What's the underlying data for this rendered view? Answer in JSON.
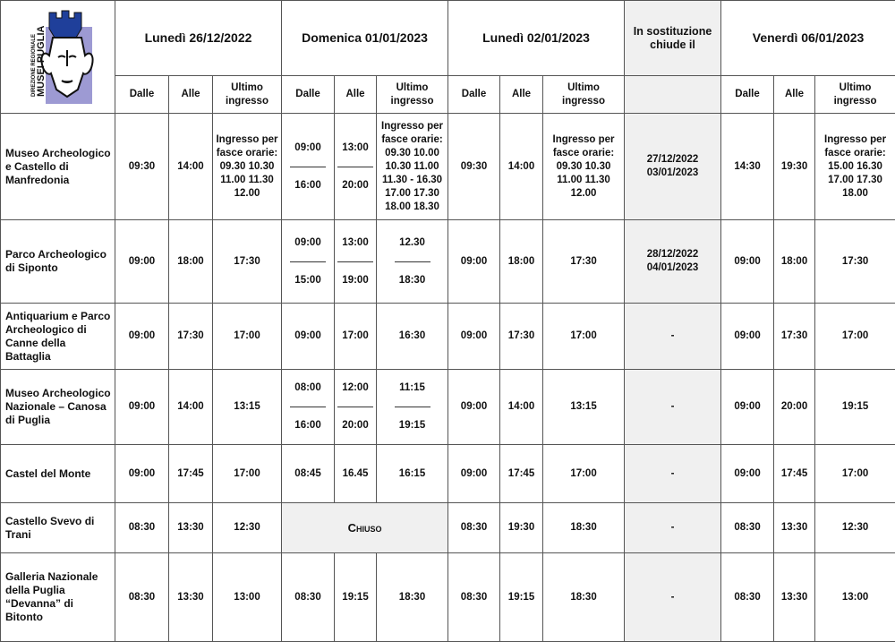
{
  "logo": {
    "line1": "DIREZIONE REGIONALE",
    "line2": "MUSEI PUGLIA",
    "colors": {
      "blue": "#1f3f9a",
      "lavender": "#9d9ad3"
    }
  },
  "header": {
    "days": [
      "Lunedì 26/12/2022",
      "Domenica 01/01/2023",
      "Lunedì 02/01/2023",
      "In sostituzione chiude il",
      "Venerdì 06/01/2023"
    ],
    "sub": {
      "from": "Dalle",
      "to": "Alle",
      "last": "Ultimo ingresso"
    }
  },
  "rows": [
    {
      "name": "Museo Archeologico e Castello di Manfredonia",
      "cells": [
        "09:30",
        "14:00",
        "Ingresso per fasce orarie: 09.30 10.30 11.00 11.30 12.00",
        [
          "09:00",
          "16:00"
        ],
        [
          "13:00",
          "20:00"
        ],
        "Ingresso per fasce orarie: 09.30 10.00 10.30 11.00 11.30 - 16.30 17.00 17.30 18.00 18.30",
        "09:30",
        "14:00",
        "Ingresso per fasce orarie: 09.30 10.30 11.00 11.30 12.00",
        "27/12/2022 03/01/2023",
        "14:30",
        "19:30",
        "Ingresso per fasce orarie: 15.00 16.30 17.00 17.30 18.00"
      ]
    },
    {
      "name": "Parco Archeologico di Siponto",
      "cells": [
        "09:00",
        "18:00",
        "17:30",
        [
          "09:00",
          "15:00"
        ],
        [
          "13:00",
          "19:00"
        ],
        [
          "12.30",
          "18:30"
        ],
        "09:00",
        "18:00",
        "17:30",
        "28/12/2022 04/01/2023",
        "09:00",
        "18:00",
        "17:30"
      ]
    },
    {
      "name": "Antiquarium e Parco Archeologico di Canne della Battaglia",
      "cells": [
        "09:00",
        "17:30",
        "17:00",
        "09:00",
        "17:00",
        "16:30",
        "09:00",
        "17:30",
        "17:00",
        "-",
        "09:00",
        "17:30",
        "17:00"
      ]
    },
    {
      "name": "Museo Archeologico Nazionale – Canosa di Puglia",
      "cells": [
        "09:00",
        "14:00",
        "13:15",
        [
          "08:00",
          "16:00"
        ],
        [
          "12:00",
          "20:00"
        ],
        [
          "11:15",
          "19:15"
        ],
        "09:00",
        "14:00",
        "13:15",
        "-",
        "09:00",
        "20:00",
        "19:15"
      ]
    },
    {
      "name": "Castel del Monte",
      "cells": [
        "09:00",
        "17:45",
        "17:00",
        "08:45",
        "16.45",
        "16:15",
        "09:00",
        "17:45",
        "17:00",
        "-",
        "09:00",
        "17:45",
        "17:00"
      ]
    },
    {
      "name": "Castello Svevo di Trani",
      "closed": "Chiuso",
      "cells": [
        "08:30",
        "13:30",
        "12:30",
        null,
        null,
        null,
        "08:30",
        "19:30",
        "18:30",
        "-",
        "08:30",
        "13:30",
        "12:30"
      ]
    },
    {
      "name": "Galleria Nazionale della Puglia “Devanna” di Bitonto",
      "cells": [
        "08:30",
        "13:30",
        "13:00",
        "08:30",
        "19:15",
        "18:30",
        "08:30",
        "19:15",
        "18:30",
        "-",
        "08:30",
        "13:30",
        "13:00"
      ]
    }
  ]
}
